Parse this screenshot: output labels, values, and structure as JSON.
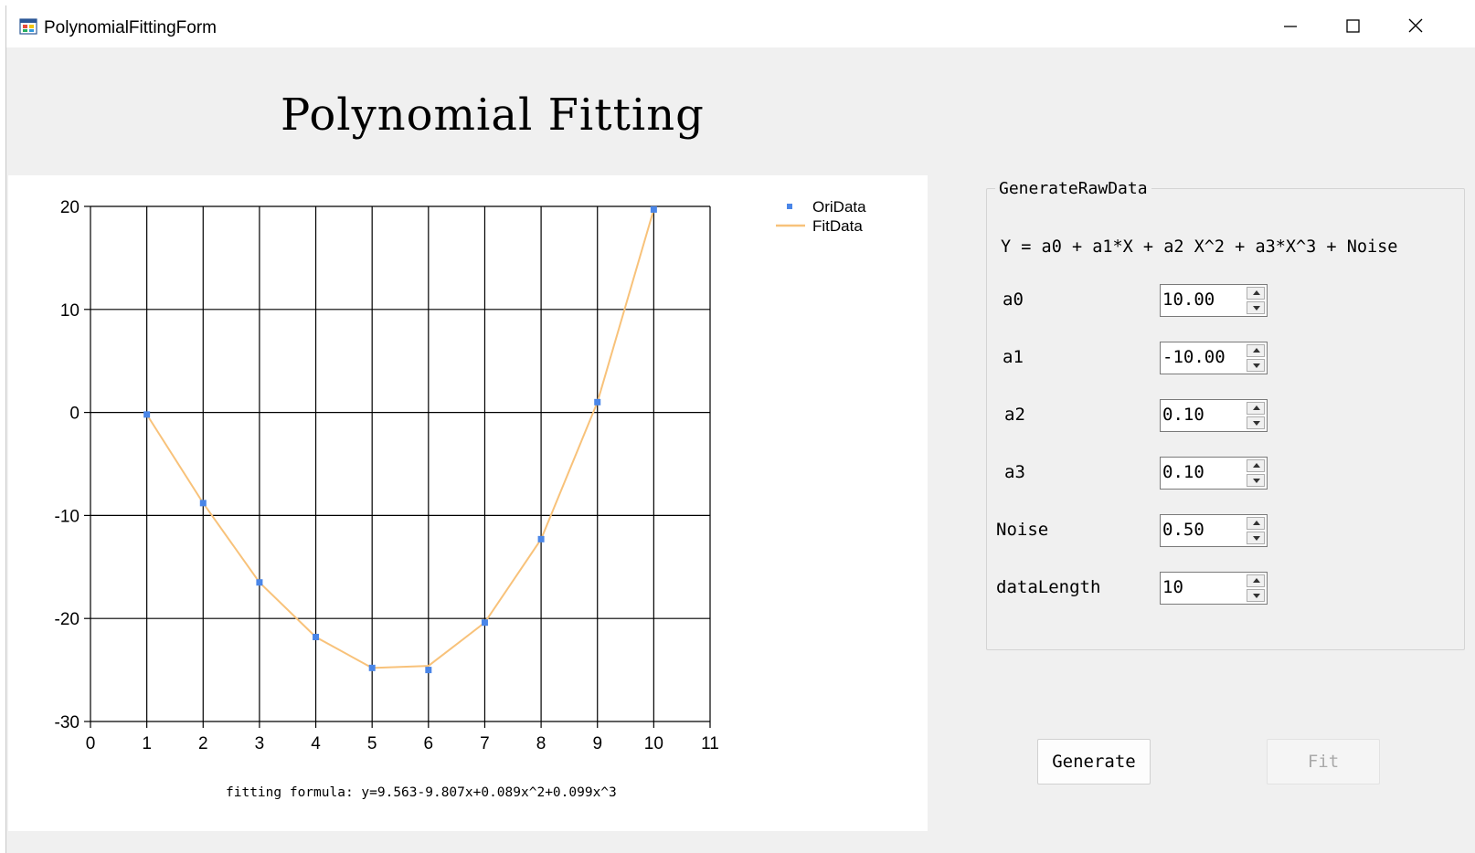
{
  "window": {
    "title": "PolynomialFittingForm"
  },
  "heading": "Polynomial Fitting",
  "chart_data": {
    "type": "line",
    "x_ticks": [
      0,
      1,
      2,
      3,
      4,
      5,
      6,
      7,
      8,
      9,
      10,
      11
    ],
    "y_ticks": [
      20,
      10,
      0,
      -10,
      -20,
      -30
    ],
    "xlim": [
      0,
      11
    ],
    "ylim": [
      -30,
      20
    ],
    "grid": true,
    "legend_position": "top-right",
    "series": [
      {
        "name": "OriData",
        "kind": "scatter",
        "color": "#4a86e8",
        "x": [
          1,
          2,
          3,
          4,
          5,
          6,
          7,
          8,
          9,
          10
        ],
        "y": [
          -0.2,
          -8.8,
          -16.5,
          -21.8,
          -24.8,
          -25.0,
          -20.4,
          -12.3,
          1.0,
          19.7
        ]
      },
      {
        "name": "FitData",
        "kind": "line",
        "color": "#f8c27a",
        "x": [
          1,
          2,
          3,
          4,
          5,
          6,
          7,
          8,
          9,
          10
        ],
        "y": [
          -0.2,
          -8.8,
          -16.5,
          -21.8,
          -24.8,
          -24.6,
          -20.4,
          -12.3,
          1.0,
          19.7
        ]
      }
    ]
  },
  "formula": "fitting formula: y=9.563-9.807x+0.089x^2+0.099x^3",
  "generate_group": {
    "title": "GenerateRawData",
    "equation": "Y = a0 + a1*X + a2 X^2 + a3*X^3 + Noise",
    "params": [
      {
        "label": "a0",
        "value": "10.00"
      },
      {
        "label": "a1",
        "value": "-10.00"
      },
      {
        "label": "a2",
        "value": "0.10"
      },
      {
        "label": "a3",
        "value": "0.10"
      },
      {
        "label": "Noise",
        "value": "0.50"
      },
      {
        "label": "dataLength",
        "value": "10"
      }
    ]
  },
  "buttons": {
    "generate": "Generate",
    "fit": "Fit"
  }
}
